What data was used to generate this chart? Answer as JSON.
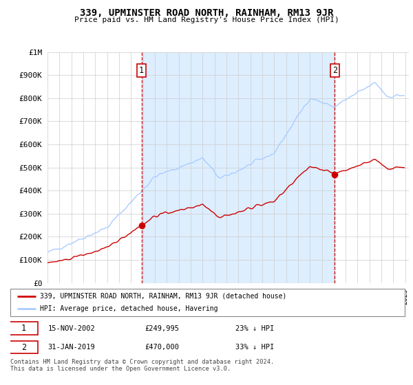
{
  "title": "339, UPMINSTER ROAD NORTH, RAINHAM, RM13 9JR",
  "subtitle": "Price paid vs. HM Land Registry's House Price Index (HPI)",
  "sale1": {
    "date": "15-NOV-2002",
    "price": 249995,
    "pct": "23% ↓ HPI",
    "label": "1"
  },
  "sale2": {
    "date": "31-JAN-2019",
    "price": 470000,
    "pct": "33% ↓ HPI",
    "label": "2"
  },
  "legend_line1": "339, UPMINSTER ROAD NORTH, RAINHAM, RM13 9JR (detached house)",
  "legend_line2": "HPI: Average price, detached house, Havering",
  "footnote": "Contains HM Land Registry data © Crown copyright and database right 2024.\nThis data is licensed under the Open Government Licence v3.0.",
  "hpi_color": "#aaccff",
  "price_color": "#cc0000",
  "shade_color": "#ddeeff",
  "ylim": [
    0,
    1000000
  ],
  "yticks": [
    0,
    100000,
    200000,
    300000,
    400000,
    500000,
    600000,
    700000,
    800000,
    900000,
    1000000
  ],
  "ytick_labels": [
    "£0",
    "£100K",
    "£200K",
    "£300K",
    "£400K",
    "£500K",
    "£600K",
    "£700K",
    "£800K",
    "£900K",
    "£1M"
  ],
  "sale1_year": 2002.88,
  "sale2_year": 2019.08
}
